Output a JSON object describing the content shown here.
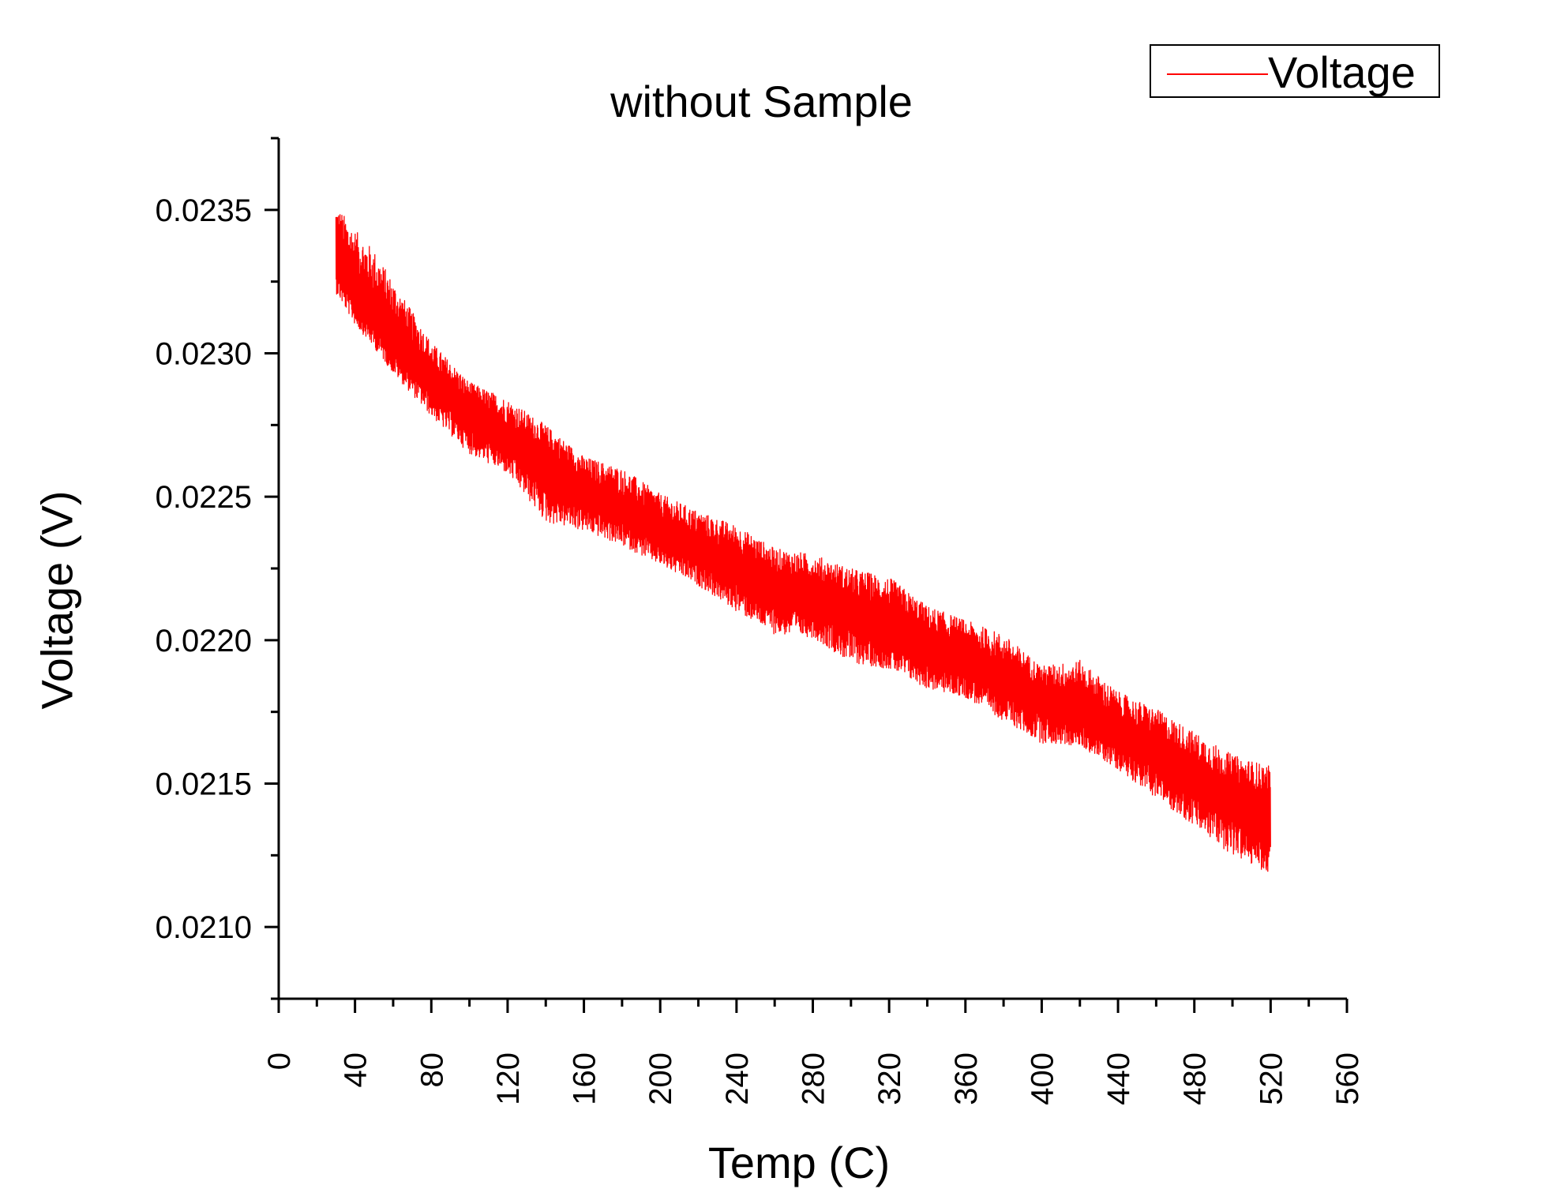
{
  "chart_data": {
    "type": "line",
    "title": "without Sample",
    "xlabel": "Temp (C)",
    "ylabel": "Voltage (V)",
    "xlim": [
      0,
      560
    ],
    "ylim": [
      0.02075,
      0.02375
    ],
    "x_ticks": [
      0,
      40,
      80,
      120,
      160,
      200,
      240,
      280,
      320,
      360,
      400,
      440,
      480,
      520,
      560
    ],
    "x_tick_labels": [
      "0",
      "40",
      "80",
      "120",
      "160",
      "200",
      "240",
      "280",
      "320",
      "360",
      "400",
      "440",
      "480",
      "520",
      "560"
    ],
    "y_ticks": [
      0.021,
      0.0215,
      0.022,
      0.0225,
      0.023,
      0.0235
    ],
    "y_tick_labels": [
      "0.0210",
      "0.0215",
      "0.0220",
      "0.0225",
      "0.0230",
      "0.0235"
    ],
    "grid": false,
    "legend_position": "top-right",
    "series": [
      {
        "name": "Voltage",
        "color": "#ff0000",
        "x": [
          30,
          40,
          50,
          60,
          80,
          100,
          120,
          140,
          160,
          180,
          200,
          220,
          240,
          260,
          280,
          300,
          320,
          340,
          360,
          380,
          400,
          420,
          440,
          460,
          480,
          500,
          520
        ],
        "y_mid": [
          0.02332,
          0.0232,
          0.02312,
          0.02305,
          0.0229,
          0.02279,
          0.0227,
          0.02262,
          0.02252,
          0.02245,
          0.02238,
          0.02231,
          0.02225,
          0.02219,
          0.02214,
          0.0221,
          0.02203,
          0.02197,
          0.02192,
          0.02186,
          0.0218,
          0.02175,
          0.02168,
          0.02161,
          0.02152,
          0.02144,
          0.0214
        ],
        "y_min": [
          0.02321,
          0.0231,
          0.02302,
          0.02293,
          0.02278,
          0.02265,
          0.02258,
          0.02241,
          0.02238,
          0.02233,
          0.02226,
          0.02219,
          0.0221,
          0.02202,
          0.02201,
          0.02192,
          0.0219,
          0.02183,
          0.0218,
          0.02172,
          0.02164,
          0.02163,
          0.02155,
          0.02145,
          0.02135,
          0.02125,
          0.02118
        ],
        "y_max": [
          0.02352,
          0.02343,
          0.02336,
          0.02325,
          0.02304,
          0.0229,
          0.02284,
          0.02275,
          0.02264,
          0.0226,
          0.02251,
          0.02245,
          0.0224,
          0.02232,
          0.0223,
          0.02225,
          0.02222,
          0.02212,
          0.02207,
          0.02202,
          0.02191,
          0.02193,
          0.02182,
          0.02176,
          0.02168,
          0.0216,
          0.02156
        ]
      }
    ]
  }
}
